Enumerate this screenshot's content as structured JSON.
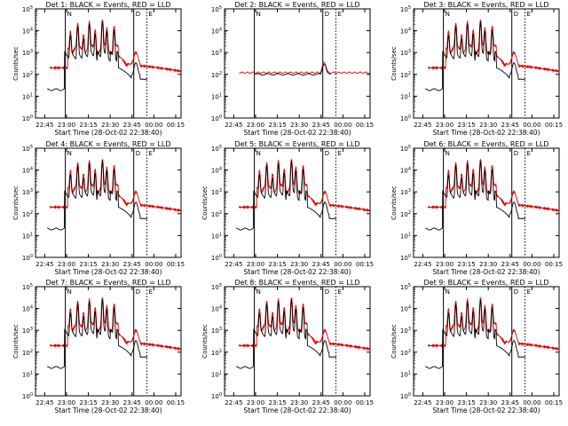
{
  "figure": {
    "rows": 3,
    "cols": 3,
    "colors": {
      "events": "#000000",
      "lld": "#e00000",
      "axes": "#000000"
    }
  },
  "chart_data": [
    {
      "type": "line",
      "title": "Det 1: BLACK = Events, RED = LLD",
      "xlabel": "Start Time (28-Oct-02 22:38:40)",
      "ylabel": "Counts/sec",
      "variant": "flare"
    },
    {
      "type": "line",
      "title": "Det 2: BLACK = Events, RED = LLD",
      "xlabel": "Start Time (28-Oct-02 22:38:40)",
      "ylabel": "",
      "variant": "flat"
    },
    {
      "type": "line",
      "title": "Det 3: BLACK = Events, RED = LLD",
      "xlabel": "Start Time (28-Oct-02 22:38:40)",
      "ylabel": "Counts/sec",
      "variant": "flare"
    },
    {
      "type": "line",
      "title": "Det 4: BLACK = Events, RED = LLD",
      "xlabel": "Start Time (28-Oct-02 22:38:40)",
      "ylabel": "Counts/sec",
      "variant": "flare"
    },
    {
      "type": "line",
      "title": "Det 5: BLACK = Events, RED = LLD",
      "xlabel": "Start Time (28-Oct-02 22:38:40)",
      "ylabel": "Counts/sec",
      "variant": "flare"
    },
    {
      "type": "line",
      "title": "Det 6: BLACK = Events, RED = LLD",
      "xlabel": "Start Time (28-Oct-02 22:38:40)",
      "ylabel": "Counts/sec",
      "variant": "flare"
    },
    {
      "type": "line",
      "title": "Det 7: BLACK = Events, RED = LLD",
      "xlabel": "Start Time (28-Oct-02 22:38:40)",
      "ylabel": "Counts/sec",
      "variant": "flare"
    },
    {
      "type": "line",
      "title": "Det 8: BLACK = Events, RED = LLD",
      "xlabel": "Start Time (28-Oct-02 22:38:40)",
      "ylabel": "Counts/sec",
      "variant": "flare"
    },
    {
      "type": "line",
      "title": "Det 9: BLACK = Events, RED = LLD",
      "xlabel": "Start Time (28-Oct-02 22:38:40)",
      "ylabel": "Counts/sec",
      "variant": "flare"
    }
  ],
  "axes": {
    "x_tick_labels": [
      "22:45",
      "23:00",
      "23:15",
      "23:30",
      "23:45",
      "00:00",
      "00:15"
    ],
    "x_tick_minutes": [
      6.33,
      21.33,
      36.33,
      51.33,
      66.33,
      81.33,
      96.33
    ],
    "xlim_minutes": [
      0,
      100
    ],
    "y_scale": "log",
    "ylim": [
      1,
      100000
    ],
    "y_tick_labels": [
      "10^0",
      "10^1",
      "10^2",
      "10^3",
      "10^4",
      "10^5"
    ],
    "y_tick_values": [
      1,
      10,
      100,
      1000,
      10000,
      100000
    ],
    "markers": [
      {
        "label": "N",
        "time_minutes": 20.5,
        "style": "solid"
      },
      {
        "label": "D",
        "time_minutes": 67.5,
        "style": "solid"
      },
      {
        "label": "E",
        "time_minutes": 76.5,
        "style": "dotted"
      }
    ]
  }
}
